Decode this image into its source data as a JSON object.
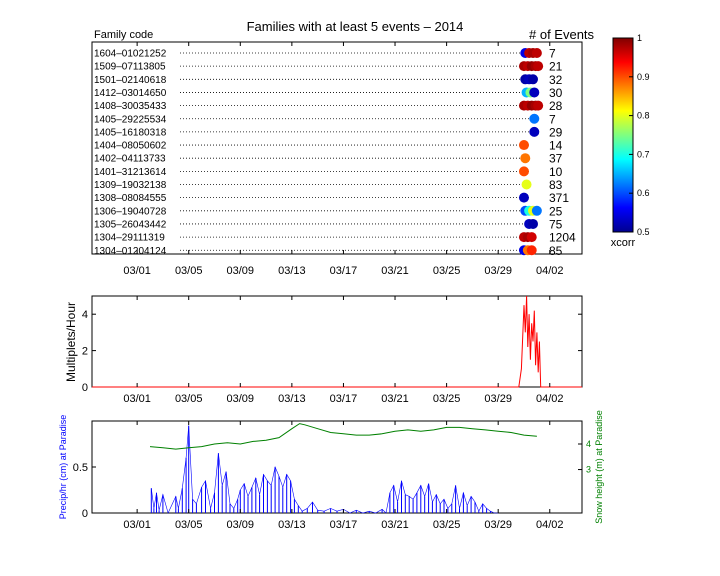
{
  "chart_data": [
    {
      "type": "scatter",
      "title": "Families with at least 5 events – 2014",
      "left_header": "Family code",
      "right_header": "# of Events",
      "x_tick_labels": [
        "03/01",
        "03/05",
        "03/09",
        "03/13",
        "03/17",
        "03/21",
        "03/25",
        "03/29",
        "04/02"
      ],
      "x_ticks_day": [
        3,
        7,
        11,
        15,
        19,
        23,
        27,
        31,
        35
      ],
      "xlim_day": [
        -0.5,
        37.5
      ],
      "families": [
        {
          "code": "1604–01021252",
          "events": "7",
          "points": [
            {
              "day": 33.1,
              "xcorr": 0.55
            },
            {
              "day": 33.4,
              "xcorr": 0.97
            },
            {
              "day": 33.7,
              "xcorr": 0.98
            },
            {
              "day": 34.0,
              "xcorr": 0.97
            }
          ]
        },
        {
          "code": "1509–07113805",
          "events": "21",
          "points": [
            {
              "day": 33.0,
              "xcorr": 0.98
            },
            {
              "day": 33.3,
              "xcorr": 0.97
            },
            {
              "day": 33.6,
              "xcorr": 0.99
            },
            {
              "day": 33.9,
              "xcorr": 0.98
            },
            {
              "day": 34.1,
              "xcorr": 0.97
            }
          ]
        },
        {
          "code": "1501–02140618",
          "events": "32",
          "points": [
            {
              "day": 33.1,
              "xcorr": 0.52
            },
            {
              "day": 33.4,
              "xcorr": 0.53
            },
            {
              "day": 33.7,
              "xcorr": 0.52
            }
          ]
        },
        {
          "code": "1412–03014650",
          "events": "30",
          "points": [
            {
              "day": 33.2,
              "xcorr": 0.65
            },
            {
              "day": 33.5,
              "xcorr": 0.75
            },
            {
              "day": 33.8,
              "xcorr": 0.53
            }
          ]
        },
        {
          "code": "1408–30035433",
          "events": "28",
          "points": [
            {
              "day": 33.0,
              "xcorr": 0.98
            },
            {
              "day": 33.3,
              "xcorr": 0.97
            },
            {
              "day": 33.6,
              "xcorr": 0.99
            },
            {
              "day": 33.9,
              "xcorr": 0.98
            },
            {
              "day": 34.1,
              "xcorr": 0.97
            }
          ]
        },
        {
          "code": "1405–29225534",
          "events": "7",
          "points": [
            {
              "day": 33.8,
              "xcorr": 0.62
            }
          ]
        },
        {
          "code": "1405–16180318",
          "events": "29",
          "points": [
            {
              "day": 33.8,
              "xcorr": 0.53
            }
          ]
        },
        {
          "code": "1404–08050602",
          "events": "14",
          "points": [
            {
              "day": 33.0,
              "xcorr": 0.9
            }
          ]
        },
        {
          "code": "1402–04113733",
          "events": "37",
          "points": [
            {
              "day": 33.1,
              "xcorr": 0.88
            }
          ]
        },
        {
          "code": "1401–31213614",
          "events": "10",
          "points": [
            {
              "day": 33.0,
              "xcorr": 0.9
            }
          ]
        },
        {
          "code": "1309–19032138",
          "events": "83",
          "points": [
            {
              "day": 33.2,
              "xcorr": 0.8
            }
          ]
        },
        {
          "code": "1308–08084555",
          "events": "371",
          "points": [
            {
              "day": 33.0,
              "xcorr": 0.53
            }
          ]
        },
        {
          "code": "1306–19040728",
          "events": "25",
          "points": [
            {
              "day": 33.1,
              "xcorr": 0.6
            },
            {
              "day": 33.4,
              "xcorr": 0.7
            },
            {
              "day": 33.7,
              "xcorr": 0.8
            },
            {
              "day": 34.0,
              "xcorr": 0.62
            }
          ]
        },
        {
          "code": "1305–26043442",
          "events": "75",
          "points": [
            {
              "day": 33.4,
              "xcorr": 0.53
            },
            {
              "day": 33.7,
              "xcorr": 0.52
            }
          ]
        },
        {
          "code": "1304–29111319",
          "events": "1204",
          "points": [
            {
              "day": 33.0,
              "xcorr": 0.97
            },
            {
              "day": 33.3,
              "xcorr": 0.98
            },
            {
              "day": 33.6,
              "xcorr": 0.96
            }
          ]
        },
        {
          "code": "1304–01204124",
          "events": "85",
          "points": [
            {
              "day": 33.0,
              "xcorr": 0.55
            },
            {
              "day": 33.3,
              "xcorr": 0.88
            },
            {
              "day": 33.6,
              "xcorr": 0.92
            }
          ]
        }
      ],
      "colorbar": {
        "label": "xcorr",
        "min": 0.5,
        "max": 1,
        "ticks": [
          "0.5",
          "0.6",
          "0.7",
          "0.8",
          "0.9",
          "1"
        ]
      }
    },
    {
      "type": "line",
      "ylabel": "Multiplets/Hour",
      "ylim": [
        0,
        5
      ],
      "y_ticks": [
        "0",
        "2",
        "4"
      ],
      "x_tick_labels": [
        "03/01",
        "03/05",
        "03/09",
        "03/13",
        "03/17",
        "03/21",
        "03/25",
        "03/29",
        "04/02"
      ],
      "series": [
        {
          "color": "#ff0000",
          "x": [
            -0.5,
            32.6,
            32.8,
            33.0,
            33.1,
            33.2,
            33.3,
            33.4,
            33.5,
            33.6,
            33.7,
            33.8,
            33.9,
            34.0,
            34.1,
            34.2,
            34.3,
            37.5
          ],
          "y": [
            0,
            0,
            1,
            4.5,
            3,
            5,
            2.2,
            4,
            1.5,
            3.5,
            2.5,
            4.2,
            1.2,
            3,
            0.8,
            2.5,
            0,
            0
          ]
        }
      ]
    },
    {
      "type": "line",
      "ylabel": "Precip/hr (cm) at Paradise",
      "y2label": "Snow height (m) at Paradise",
      "ylim": [
        0,
        1.0
      ],
      "y_ticks": [
        "0",
        "0.5"
      ],
      "y2lim": [
        1.3,
        4.9
      ],
      "y2_ticks": [
        "3",
        "4"
      ],
      "x_tick_labels": [
        "03/01",
        "03/05",
        "03/09",
        "03/13",
        "03/17",
        "03/21",
        "03/25",
        "03/29",
        "04/02"
      ],
      "series": [
        {
          "name": "precip",
          "color": "#0000ff",
          "x": [
            4.1,
            4.3,
            4.5,
            4.7,
            5.0,
            5.4,
            6.0,
            6.2,
            6.5,
            6.8,
            7.0,
            7.3,
            7.6,
            8.0,
            8.3,
            8.7,
            9.0,
            9.3,
            9.6,
            9.9,
            10.2,
            10.5,
            10.8,
            11.0,
            11.3,
            11.6,
            11.9,
            12.2,
            12.5,
            12.8,
            13.1,
            13.4,
            13.7,
            14.0,
            14.3,
            14.6,
            14.9,
            15.2,
            15.5,
            15.8,
            16.2,
            16.6,
            17.0,
            17.5,
            18.0,
            18.5,
            19.0,
            19.5,
            20.0,
            20.5,
            21.0,
            21.5,
            22.0,
            22.3,
            22.6,
            22.9,
            23.2,
            23.5,
            23.8,
            24.1,
            24.4,
            24.7,
            25.0,
            25.3,
            25.6,
            25.9,
            26.2,
            26.5,
            26.8,
            27.1,
            27.4,
            27.7,
            28.0,
            28.3,
            28.6,
            28.9,
            29.2,
            29.5,
            29.8,
            30.1,
            30.4,
            30.7,
            31.0
          ],
          "y": [
            0.27,
            0.05,
            0.22,
            0.03,
            0.2,
            0,
            0.18,
            0.05,
            0.27,
            0.6,
            0.95,
            0.15,
            0.1,
            0.28,
            0.35,
            0.05,
            0.22,
            0.65,
            0.3,
            0.45,
            0.1,
            0.05,
            0.15,
            0.25,
            0.32,
            0.18,
            0.28,
            0.38,
            0.2,
            0.42,
            0.35,
            0.3,
            0.5,
            0.4,
            0.28,
            0.42,
            0.35,
            0.15,
            0.08,
            0.02,
            0.05,
            0.12,
            0.03,
            0.02,
            0.05,
            0.02,
            0.04,
            0,
            0.03,
            0,
            0.02,
            0,
            0.04,
            0,
            0.22,
            0.3,
            0.12,
            0.35,
            0.2,
            0.18,
            0.15,
            0.22,
            0.3,
            0.18,
            0.32,
            0.12,
            0.2,
            0.1,
            0.15,
            0.05,
            0.1,
            0.3,
            0.05,
            0.22,
            0.08,
            0.18,
            0.12,
            0.02,
            0.1,
            0.05,
            0.02,
            0,
            0
          ]
        },
        {
          "name": "snow",
          "color": "#008000",
          "x": [
            4.0,
            5.0,
            6.0,
            7.0,
            8.0,
            9.0,
            10.0,
            11.0,
            12.0,
            13.0,
            14.0,
            15.0,
            15.6,
            16.0,
            17.0,
            18.0,
            19.0,
            20.0,
            21.0,
            22.0,
            23.0,
            24.0,
            25.0,
            26.0,
            27.0,
            28.0,
            29.0,
            30.0,
            31.0,
            32.0,
            33.0,
            34.0
          ],
          "y": [
            3.9,
            3.85,
            3.8,
            3.85,
            3.9,
            4.0,
            4.05,
            4.0,
            4.1,
            4.15,
            4.25,
            4.6,
            4.8,
            4.75,
            4.6,
            4.45,
            4.4,
            4.35,
            4.35,
            4.4,
            4.5,
            4.55,
            4.5,
            4.55,
            4.65,
            4.65,
            4.6,
            4.55,
            4.5,
            4.45,
            4.35,
            4.3
          ]
        }
      ]
    }
  ]
}
